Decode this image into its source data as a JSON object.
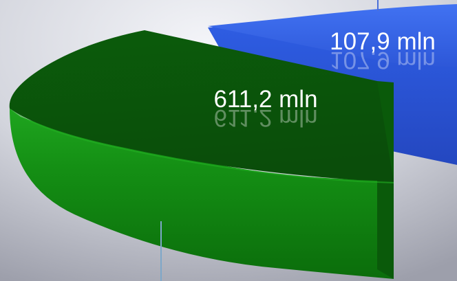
{
  "chart_data": {
    "type": "pie",
    "style": "3d-exploded",
    "slices": [
      {
        "label": "611,2 mln",
        "value": 611.2,
        "color": "#138c13"
      },
      {
        "label": "107,9 mln",
        "value": 107.9,
        "color": "#3a63e6"
      }
    ],
    "title": "",
    "background": "#c7c9d2"
  }
}
